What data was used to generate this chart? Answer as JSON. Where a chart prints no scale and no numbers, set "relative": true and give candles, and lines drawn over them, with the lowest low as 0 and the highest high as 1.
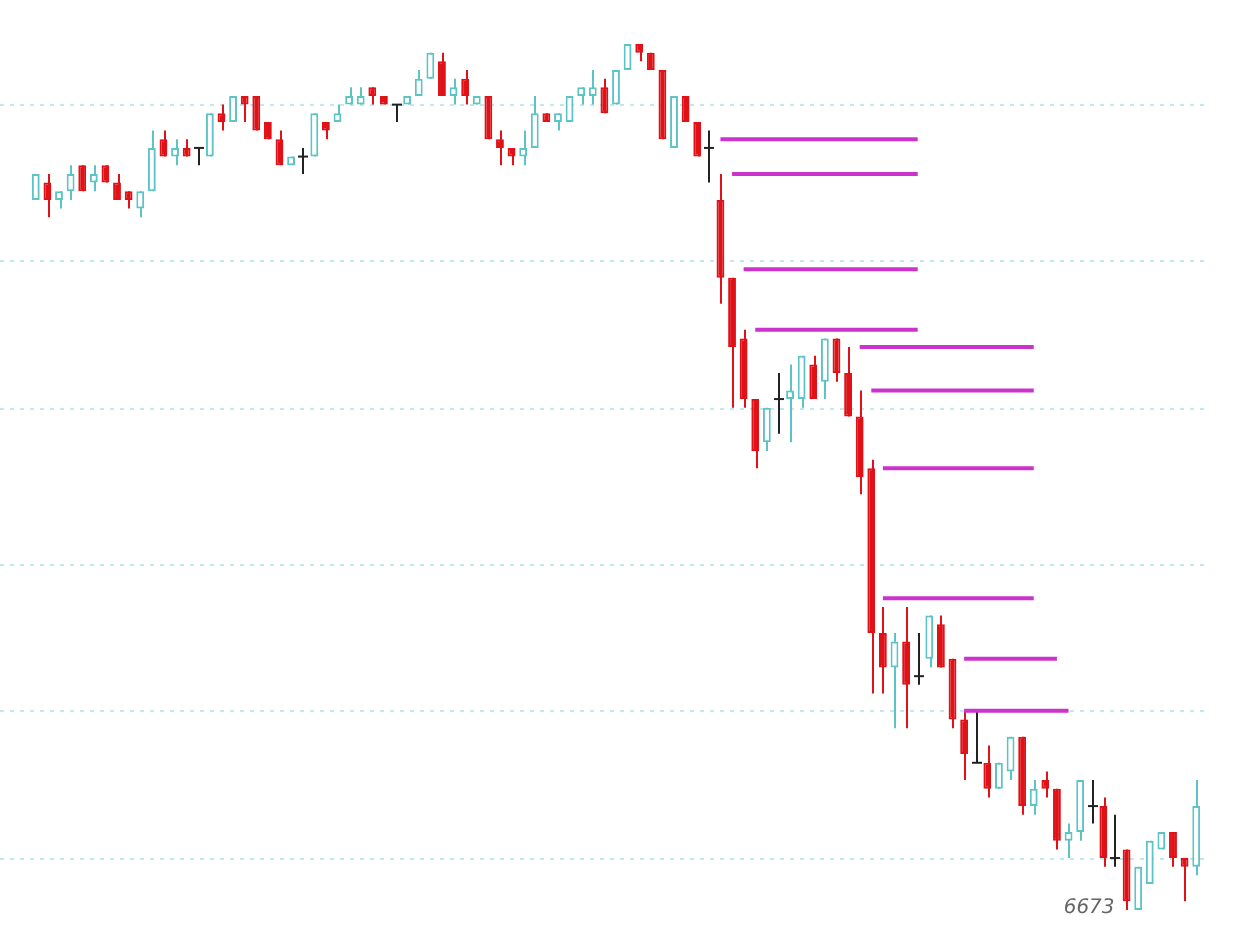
{
  "chart_data": {
    "type": "candlestick",
    "relative": true,
    "tick_labels": false,
    "ref_lines": [
      {
        "axis": "y",
        "value": 0.93,
        "color": "#bfe9ee",
        "line_style": "dotted"
      },
      {
        "axis": "y",
        "value": 0.75,
        "color": "#bfe9ee",
        "line_style": "dotted"
      },
      {
        "axis": "y",
        "value": 0.58,
        "color": "#bfe9ee",
        "line_style": "dotted"
      },
      {
        "axis": "y",
        "value": 0.4,
        "color": "#bfe9ee",
        "line_style": "dotted"
      },
      {
        "axis": "y",
        "value": 0.23,
        "color": "#bfe9ee",
        "line_style": "dotted"
      },
      {
        "axis": "y",
        "value": 0.06,
        "color": "#bfe9ee",
        "line_style": "dotted"
      }
    ],
    "marker": "none",
    "line_style": "solid",
    "annotations": [
      "6673"
    ],
    "categories": [
      null,
      null,
      null,
      null,
      null,
      null,
      null,
      null,
      null,
      null,
      null,
      null,
      null,
      null,
      null,
      null,
      null,
      null,
      null,
      null,
      null,
      null,
      null,
      null,
      null,
      null,
      null,
      null,
      null,
      null,
      null,
      null,
      null,
      null,
      null,
      null,
      null,
      null,
      null,
      null,
      null,
      null,
      null,
      null,
      null,
      null,
      null,
      null,
      null,
      null,
      null,
      null,
      null,
      null,
      null,
      null,
      null,
      null,
      null,
      null,
      null,
      null,
      null,
      null,
      null,
      null,
      null,
      null,
      null,
      null,
      null,
      null,
      null,
      null,
      null,
      null,
      null,
      null,
      null,
      null,
      null,
      null,
      null,
      null,
      null,
      null,
      null,
      null,
      null,
      null,
      null,
      null,
      null,
      null,
      null,
      null,
      null,
      null,
      null,
      null,
      null
    ],
    "ohlc": [
      [
        0.82,
        0.85,
        0.82,
        0.85
      ],
      [
        0.84,
        0.85,
        0.8,
        0.82
      ],
      [
        0.82,
        0.83,
        0.81,
        0.83
      ],
      [
        0.83,
        0.86,
        0.82,
        0.85
      ],
      [
        0.86,
        0.86,
        0.83,
        0.83
      ],
      [
        0.84,
        0.86,
        0.83,
        0.85
      ],
      [
        0.86,
        0.86,
        0.84,
        0.84
      ],
      [
        0.84,
        0.85,
        0.82,
        0.82
      ],
      [
        0.83,
        0.83,
        0.81,
        0.82
      ],
      [
        0.81,
        0.83,
        0.8,
        0.83
      ],
      [
        0.83,
        0.9,
        0.83,
        0.88
      ],
      [
        0.89,
        0.9,
        0.87,
        0.87
      ],
      [
        0.87,
        0.89,
        0.86,
        0.88
      ],
      [
        0.88,
        0.89,
        0.87,
        0.87
      ],
      [
        0.88,
        0.88,
        0.86,
        0.88
      ],
      [
        0.87,
        0.92,
        0.87,
        0.92
      ],
      [
        0.92,
        0.93,
        0.9,
        0.91
      ],
      [
        0.91,
        0.94,
        0.91,
        0.94
      ],
      [
        0.94,
        0.94,
        0.91,
        0.93
      ],
      [
        0.94,
        0.94,
        0.9,
        0.9
      ],
      [
        0.91,
        0.91,
        0.89,
        0.89
      ],
      [
        0.89,
        0.9,
        0.86,
        0.86
      ],
      [
        0.86,
        0.87,
        0.86,
        0.87
      ],
      [
        0.87,
        0.88,
        0.85,
        0.87
      ],
      [
        0.87,
        0.92,
        0.87,
        0.92
      ],
      [
        0.91,
        0.91,
        0.89,
        0.9
      ],
      [
        0.91,
        0.93,
        0.91,
        0.92
      ],
      [
        0.93,
        0.95,
        0.93,
        0.94
      ],
      [
        0.93,
        0.95,
        0.93,
        0.94
      ],
      [
        0.95,
        0.95,
        0.93,
        0.94
      ],
      [
        0.94,
        0.94,
        0.93,
        0.93
      ],
      [
        0.93,
        0.93,
        0.91,
        0.93
      ],
      [
        0.93,
        0.94,
        0.93,
        0.94
      ],
      [
        0.94,
        0.97,
        0.94,
        0.96
      ],
      [
        0.96,
        0.99,
        0.96,
        0.99
      ],
      [
        0.98,
        0.99,
        0.94,
        0.94
      ],
      [
        0.94,
        0.96,
        0.93,
        0.95
      ],
      [
        0.96,
        0.97,
        0.93,
        0.94
      ],
      [
        0.93,
        0.94,
        0.93,
        0.94
      ],
      [
        0.94,
        0.94,
        0.89,
        0.89
      ],
      [
        0.89,
        0.9,
        0.86,
        0.88
      ],
      [
        0.88,
        0.88,
        0.86,
        0.87
      ],
      [
        0.87,
        0.9,
        0.86,
        0.88
      ],
      [
        0.88,
        0.94,
        0.88,
        0.92
      ],
      [
        0.92,
        0.92,
        0.91,
        0.91
      ],
      [
        0.91,
        0.92,
        0.9,
        0.92
      ],
      [
        0.91,
        0.94,
        0.91,
        0.94
      ],
      [
        0.94,
        0.95,
        0.93,
        0.95
      ],
      [
        0.94,
        0.97,
        0.93,
        0.95
      ],
      [
        0.95,
        0.96,
        0.92,
        0.92
      ],
      [
        0.93,
        0.97,
        0.93,
        0.97
      ],
      [
        0.97,
        1,
        0.97,
        1
      ],
      [
        1,
        1,
        0.98,
        0.99
      ],
      [
        0.99,
        0.99,
        0.97,
        0.97
      ],
      [
        0.97,
        0.97,
        0.89,
        0.89
      ],
      [
        0.88,
        0.94,
        0.88,
        0.94
      ],
      [
        0.94,
        0.94,
        0.91,
        0.91
      ],
      [
        0.91,
        0.91,
        0.87,
        0.87
      ],
      [
        0.88,
        0.9,
        0.84,
        0.88
      ],
      [
        0.82,
        0.85,
        0.7,
        0.73
      ],
      [
        0.73,
        0.73,
        0.58,
        0.65
      ],
      [
        0.66,
        0.67,
        0.58,
        0.59
      ],
      [
        0.59,
        0.59,
        0.51,
        0.53
      ],
      [
        0.54,
        0.58,
        0.53,
        0.58
      ],
      [
        0.59,
        0.62,
        0.55,
        0.59
      ],
      [
        0.59,
        0.63,
        0.54,
        0.6
      ],
      [
        0.59,
        0.64,
        0.58,
        0.64
      ],
      [
        0.63,
        0.64,
        0.59,
        0.59
      ],
      [
        0.61,
        0.66,
        0.59,
        0.66
      ],
      [
        0.66,
        0.66,
        0.61,
        0.62
      ],
      [
        0.62,
        0.65,
        0.57,
        0.57
      ],
      [
        0.57,
        0.6,
        0.48,
        0.5
      ],
      [
        0.51,
        0.52,
        0.25,
        0.32
      ],
      [
        0.32,
        0.35,
        0.25,
        0.28
      ],
      [
        0.28,
        0.32,
        0.21,
        0.31
      ],
      [
        0.31,
        0.35,
        0.21,
        0.26
      ],
      [
        0.27,
        0.32,
        0.26,
        0.27
      ],
      [
        0.29,
        0.34,
        0.28,
        0.34
      ],
      [
        0.33,
        0.34,
        0.28,
        0.28
      ],
      [
        0.29,
        0.29,
        0.21,
        0.22
      ],
      [
        0.22,
        0.23,
        0.15,
        0.18
      ],
      [
        0.17,
        0.23,
        0.17,
        0.17
      ],
      [
        0.17,
        0.19,
        0.13,
        0.14
      ],
      [
        0.14,
        0.17,
        0.14,
        0.17
      ],
      [
        0.16,
        0.2,
        0.15,
        0.2
      ],
      [
        0.2,
        0.2,
        0.11,
        0.12
      ],
      [
        0.12,
        0.15,
        0.11,
        0.14
      ],
      [
        0.15,
        0.16,
        0.13,
        0.14
      ],
      [
        0.14,
        0.14,
        0.07,
        0.08
      ],
      [
        0.08,
        0.1,
        0.06,
        0.09
      ],
      [
        0.09,
        0.15,
        0.08,
        0.15
      ],
      [
        0.12,
        0.15,
        0.1,
        0.12
      ],
      [
        0.12,
        0.13,
        0.05,
        0.06
      ],
      [
        0.06,
        0.11,
        0.05,
        0.06
      ],
      [
        0.07,
        0.07,
        0,
        0.01
      ],
      [
        0,
        0.05,
        0,
        0.05
      ],
      [
        0.03,
        0.08,
        0.03,
        0.08
      ],
      [
        0.07,
        0.09,
        0.07,
        0.09
      ],
      [
        0.09,
        0.09,
        0.05,
        0.06
      ],
      [
        0.06,
        0.06,
        0.01,
        0.05
      ],
      [
        0.05,
        0.15,
        0.04,
        0.12
      ]
    ],
    "series": [
      {
        "type": "line",
        "color": "#cc33cc",
        "values": [
          null,
          null,
          null,
          null,
          null,
          null,
          null,
          null,
          null,
          null,
          null,
          null,
          null,
          null,
          null,
          null,
          null,
          null,
          null,
          null,
          null,
          null,
          null,
          null,
          null,
          null,
          null,
          null,
          null,
          null,
          null,
          null,
          null,
          null,
          null,
          null,
          null,
          null,
          null,
          null,
          null,
          null,
          null,
          null,
          null,
          null,
          null,
          null,
          null,
          null,
          null,
          null,
          null,
          null,
          null,
          null,
          null,
          null,
          null,
          0.89,
          0.89,
          0.89,
          0.89,
          0.89,
          0.89,
          0.89,
          0.89,
          0.89,
          0.89,
          0.89,
          0.89,
          0.89,
          0.89,
          0.89,
          0.89,
          0.89,
          0.89,
          null,
          null,
          null,
          null,
          null,
          null,
          null,
          null,
          null,
          null,
          null,
          null,
          null,
          null,
          null,
          null,
          null,
          null,
          null,
          null,
          null,
          null,
          null,
          null
        ]
      },
      {
        "type": "line",
        "color": "#cc33cc",
        "values": [
          null,
          null,
          null,
          null,
          null,
          null,
          null,
          null,
          null,
          null,
          null,
          null,
          null,
          null,
          null,
          null,
          null,
          null,
          null,
          null,
          null,
          null,
          null,
          null,
          null,
          null,
          null,
          null,
          null,
          null,
          null,
          null,
          null,
          null,
          null,
          null,
          null,
          null,
          null,
          null,
          null,
          null,
          null,
          null,
          null,
          null,
          null,
          null,
          null,
          null,
          null,
          null,
          null,
          null,
          null,
          null,
          null,
          null,
          null,
          null,
          0.85,
          0.85,
          0.85,
          0.85,
          0.85,
          0.85,
          0.85,
          0.85,
          0.85,
          0.85,
          0.85,
          0.85,
          0.85,
          0.85,
          0.85,
          0.85,
          0.85,
          null,
          null,
          null,
          null,
          null,
          null,
          null,
          null,
          null,
          null,
          null,
          null,
          null,
          null,
          null,
          null,
          null,
          null,
          null,
          null,
          null,
          null,
          null,
          null
        ]
      },
      {
        "type": "line",
        "color": "#cc33cc",
        "values": [
          null,
          null,
          null,
          null,
          null,
          null,
          null,
          null,
          null,
          null,
          null,
          null,
          null,
          null,
          null,
          null,
          null,
          null,
          null,
          null,
          null,
          null,
          null,
          null,
          null,
          null,
          null,
          null,
          null,
          null,
          null,
          null,
          null,
          null,
          null,
          null,
          null,
          null,
          null,
          null,
          null,
          null,
          null,
          null,
          null,
          null,
          null,
          null,
          null,
          null,
          null,
          null,
          null,
          null,
          null,
          null,
          null,
          null,
          null,
          null,
          null,
          0.74,
          0.74,
          0.74,
          0.74,
          0.74,
          0.74,
          0.74,
          0.74,
          0.74,
          0.74,
          0.74,
          0.74,
          0.74,
          0.74,
          0.74,
          0.74,
          null,
          null,
          null,
          null,
          null,
          null,
          null,
          null,
          null,
          null,
          null,
          null,
          null,
          null,
          null,
          null,
          null,
          null,
          null,
          null,
          null,
          null,
          null,
          null
        ]
      },
      {
        "type": "line",
        "color": "#cc33cc",
        "values": [
          null,
          null,
          null,
          null,
          null,
          null,
          null,
          null,
          null,
          null,
          null,
          null,
          null,
          null,
          null,
          null,
          null,
          null,
          null,
          null,
          null,
          null,
          null,
          null,
          null,
          null,
          null,
          null,
          null,
          null,
          null,
          null,
          null,
          null,
          null,
          null,
          null,
          null,
          null,
          null,
          null,
          null,
          null,
          null,
          null,
          null,
          null,
          null,
          null,
          null,
          null,
          null,
          null,
          null,
          null,
          null,
          null,
          null,
          null,
          null,
          null,
          null,
          0.67,
          0.67,
          0.67,
          0.67,
          0.67,
          0.67,
          0.67,
          0.67,
          0.67,
          0.67,
          0.67,
          0.67,
          0.67,
          0.67,
          0.67,
          null,
          null,
          null,
          null,
          null,
          null,
          null,
          null,
          null,
          null,
          null,
          null,
          null,
          null,
          null,
          null,
          null,
          null,
          null,
          null,
          null,
          null,
          null,
          null
        ]
      },
      {
        "type": "line",
        "color": "#cc33cc",
        "values": [
          null,
          null,
          null,
          null,
          null,
          null,
          null,
          null,
          null,
          null,
          null,
          null,
          null,
          null,
          null,
          null,
          null,
          null,
          null,
          null,
          null,
          null,
          null,
          null,
          null,
          null,
          null,
          null,
          null,
          null,
          null,
          null,
          null,
          null,
          null,
          null,
          null,
          null,
          null,
          null,
          null,
          null,
          null,
          null,
          null,
          null,
          null,
          null,
          null,
          null,
          null,
          null,
          null,
          null,
          null,
          null,
          null,
          null,
          null,
          null,
          null,
          null,
          null,
          null,
          null,
          null,
          null,
          null,
          null,
          null,
          null,
          0.65,
          0.65,
          0.65,
          0.65,
          0.65,
          0.65,
          0.65,
          0.65,
          0.65,
          0.65,
          0.65,
          0.65,
          0.65,
          0.65,
          0.65,
          0.65,
          null,
          null,
          null,
          null,
          null,
          null,
          null,
          null,
          null,
          null,
          null,
          null,
          null,
          null
        ]
      },
      {
        "type": "line",
        "color": "#cc33cc",
        "values": [
          null,
          null,
          null,
          null,
          null,
          null,
          null,
          null,
          null,
          null,
          null,
          null,
          null,
          null,
          null,
          null,
          null,
          null,
          null,
          null,
          null,
          null,
          null,
          null,
          null,
          null,
          null,
          null,
          null,
          null,
          null,
          null,
          null,
          null,
          null,
          null,
          null,
          null,
          null,
          null,
          null,
          null,
          null,
          null,
          null,
          null,
          null,
          null,
          null,
          null,
          null,
          null,
          null,
          null,
          null,
          null,
          null,
          null,
          null,
          null,
          null,
          null,
          null,
          null,
          null,
          null,
          null,
          null,
          null,
          null,
          null,
          null,
          0.6,
          0.6,
          0.6,
          0.6,
          0.6,
          0.6,
          0.6,
          0.6,
          0.6,
          0.6,
          0.6,
          0.6,
          0.6,
          0.6,
          0.6,
          null,
          null,
          null,
          null,
          null,
          null,
          null,
          null,
          null,
          null,
          null,
          null,
          null,
          null
        ]
      },
      {
        "type": "line",
        "color": "#cc33cc",
        "values": [
          null,
          null,
          null,
          null,
          null,
          null,
          null,
          null,
          null,
          null,
          null,
          null,
          null,
          null,
          null,
          null,
          null,
          null,
          null,
          null,
          null,
          null,
          null,
          null,
          null,
          null,
          null,
          null,
          null,
          null,
          null,
          null,
          null,
          null,
          null,
          null,
          null,
          null,
          null,
          null,
          null,
          null,
          null,
          null,
          null,
          null,
          null,
          null,
          null,
          null,
          null,
          null,
          null,
          null,
          null,
          null,
          null,
          null,
          null,
          null,
          null,
          null,
          null,
          null,
          null,
          null,
          null,
          null,
          null,
          null,
          null,
          null,
          null,
          0.51,
          0.51,
          0.51,
          0.51,
          0.51,
          0.51,
          0.51,
          0.51,
          0.51,
          0.51,
          0.51,
          0.51,
          0.51,
          0.51,
          null,
          null,
          null,
          null,
          null,
          null,
          null,
          null,
          null,
          null,
          null,
          null,
          null,
          null
        ]
      },
      {
        "type": "line",
        "color": "#cc33cc",
        "values": [
          null,
          null,
          null,
          null,
          null,
          null,
          null,
          null,
          null,
          null,
          null,
          null,
          null,
          null,
          null,
          null,
          null,
          null,
          null,
          null,
          null,
          null,
          null,
          null,
          null,
          null,
          null,
          null,
          null,
          null,
          null,
          null,
          null,
          null,
          null,
          null,
          null,
          null,
          null,
          null,
          null,
          null,
          null,
          null,
          null,
          null,
          null,
          null,
          null,
          null,
          null,
          null,
          null,
          null,
          null,
          null,
          null,
          null,
          null,
          null,
          null,
          null,
          null,
          null,
          null,
          null,
          null,
          null,
          null,
          null,
          null,
          null,
          null,
          0.36,
          0.36,
          0.36,
          0.36,
          0.36,
          0.36,
          0.36,
          0.36,
          0.36,
          0.36,
          0.36,
          0.36,
          0.36,
          0.36,
          null,
          null,
          null,
          null,
          null,
          null,
          null,
          null,
          null,
          null,
          null,
          null,
          null,
          null
        ]
      },
      {
        "type": "line",
        "color": "#cc33cc",
        "values": [
          null,
          null,
          null,
          null,
          null,
          null,
          null,
          null,
          null,
          null,
          null,
          null,
          null,
          null,
          null,
          null,
          null,
          null,
          null,
          null,
          null,
          null,
          null,
          null,
          null,
          null,
          null,
          null,
          null,
          null,
          null,
          null,
          null,
          null,
          null,
          null,
          null,
          null,
          null,
          null,
          null,
          null,
          null,
          null,
          null,
          null,
          null,
          null,
          null,
          null,
          null,
          null,
          null,
          null,
          null,
          null,
          null,
          null,
          null,
          null,
          null,
          null,
          null,
          null,
          null,
          null,
          null,
          null,
          null,
          null,
          null,
          null,
          null,
          null,
          null,
          null,
          null,
          null,
          null,
          null,
          0.29,
          0.29,
          0.29,
          0.29,
          0.29,
          0.29,
          0.29,
          0.29,
          0.29,
          null,
          null,
          null,
          null,
          null,
          null,
          null,
          null,
          null,
          null,
          null,
          null
        ]
      },
      {
        "type": "line",
        "color": "#cc33cc",
        "values": [
          null,
          null,
          null,
          null,
          null,
          null,
          null,
          null,
          null,
          null,
          null,
          null,
          null,
          null,
          null,
          null,
          null,
          null,
          null,
          null,
          null,
          null,
          null,
          null,
          null,
          null,
          null,
          null,
          null,
          null,
          null,
          null,
          null,
          null,
          null,
          null,
          null,
          null,
          null,
          null,
          null,
          null,
          null,
          null,
          null,
          null,
          null,
          null,
          null,
          null,
          null,
          null,
          null,
          null,
          null,
          null,
          null,
          null,
          null,
          null,
          null,
          null,
          null,
          null,
          null,
          null,
          null,
          null,
          null,
          null,
          null,
          null,
          null,
          null,
          null,
          null,
          null,
          null,
          null,
          null,
          0.23,
          0.23,
          0.23,
          0.23,
          0.23,
          0.23,
          0.23,
          0.23,
          0.23,
          0.23,
          null,
          null,
          null,
          null,
          null,
          null,
          null,
          null,
          null,
          null,
          null
        ]
      }
    ]
  }
}
